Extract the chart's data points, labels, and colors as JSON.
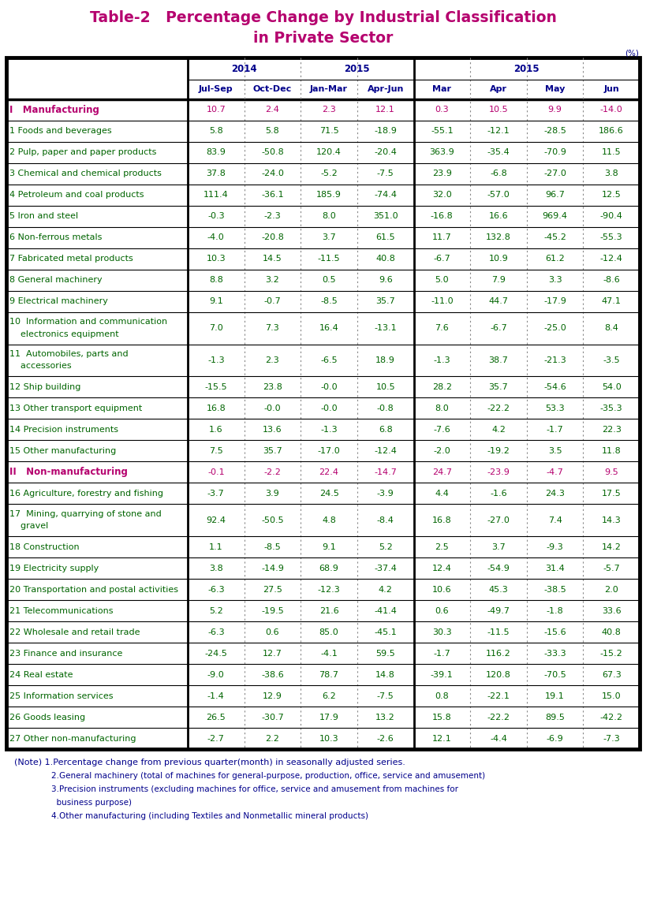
{
  "title_line1": "Table-2   Percentage Change by Industrial Classification",
  "title_line2": "in Private Sector",
  "title_color": "#b5006e",
  "percent_label": "(%)",
  "header_color": "#00008b",
  "note_color": "#00008b",
  "col_subheaders": [
    "Jul-Sep",
    "Oct-Dec",
    "Jan-Mar",
    "Apr-Jun",
    "Mar",
    "Apr",
    "May",
    "Jun"
  ],
  "rows": [
    {
      "label": "I   Manufacturing",
      "is_section": true,
      "label_color": "#b5006e",
      "data_color": "#b5006e",
      "multiline": false,
      "values": [
        "10.7",
        "2.4",
        "2.3",
        "12.1",
        "0.3",
        "10.5",
        "9.9",
        "-14.0"
      ]
    },
    {
      "label": "1 Foods and beverages",
      "is_section": false,
      "label_color": "#006400",
      "data_color": "#006400",
      "multiline": false,
      "values": [
        "5.8",
        "5.8",
        "71.5",
        "-18.9",
        "-55.1",
        "-12.1",
        "-28.5",
        "186.6"
      ]
    },
    {
      "label": "2 Pulp, paper and paper products",
      "is_section": false,
      "label_color": "#006400",
      "data_color": "#006400",
      "multiline": false,
      "values": [
        "83.9",
        "-50.8",
        "120.4",
        "-20.4",
        "363.9",
        "-35.4",
        "-70.9",
        "11.5"
      ]
    },
    {
      "label": "3 Chemical and chemical products",
      "is_section": false,
      "label_color": "#006400",
      "data_color": "#006400",
      "multiline": false,
      "values": [
        "37.8",
        "-24.0",
        "-5.2",
        "-7.5",
        "23.9",
        "-6.8",
        "-27.0",
        "3.8"
      ]
    },
    {
      "label": "4 Petroleum and coal products",
      "is_section": false,
      "label_color": "#006400",
      "data_color": "#006400",
      "multiline": false,
      "values": [
        "111.4",
        "-36.1",
        "185.9",
        "-74.4",
        "32.0",
        "-57.0",
        "96.7",
        "12.5"
      ]
    },
    {
      "label": "5 Iron and steel",
      "is_section": false,
      "label_color": "#006400",
      "data_color": "#006400",
      "multiline": false,
      "values": [
        "-0.3",
        "-2.3",
        "8.0",
        "351.0",
        "-16.8",
        "16.6",
        "969.4",
        "-90.4"
      ]
    },
    {
      "label": "6 Non-ferrous metals",
      "is_section": false,
      "label_color": "#006400",
      "data_color": "#006400",
      "multiline": false,
      "values": [
        "-4.0",
        "-20.8",
        "3.7",
        "61.5",
        "11.7",
        "132.8",
        "-45.2",
        "-55.3"
      ]
    },
    {
      "label": "7 Fabricated metal products",
      "is_section": false,
      "label_color": "#006400",
      "data_color": "#006400",
      "multiline": false,
      "values": [
        "10.3",
        "14.5",
        "-11.5",
        "40.8",
        "-6.7",
        "10.9",
        "61.2",
        "-12.4"
      ]
    },
    {
      "label": "8 General machinery",
      "is_section": false,
      "label_color": "#006400",
      "data_color": "#006400",
      "multiline": false,
      "values": [
        "8.8",
        "3.2",
        "0.5",
        "9.6",
        "5.0",
        "7.9",
        "3.3",
        "-8.6"
      ]
    },
    {
      "label": "9 Electrical machinery",
      "is_section": false,
      "label_color": "#006400",
      "data_color": "#006400",
      "multiline": false,
      "values": [
        "9.1",
        "-0.7",
        "-8.5",
        "35.7",
        "-11.0",
        "44.7",
        "-17.9",
        "47.1"
      ]
    },
    {
      "label_line1": "10  Information and communication",
      "label_line2": "    electronics equipment",
      "is_section": false,
      "label_color": "#006400",
      "data_color": "#006400",
      "multiline": true,
      "values": [
        "7.0",
        "7.3",
        "16.4",
        "-13.1",
        "7.6",
        "-6.7",
        "-25.0",
        "8.4"
      ]
    },
    {
      "label_line1": "11  Automobiles, parts and",
      "label_line2": "    accessories",
      "is_section": false,
      "label_color": "#006400",
      "data_color": "#006400",
      "multiline": true,
      "values": [
        "-1.3",
        "2.3",
        "-6.5",
        "18.9",
        "-1.3",
        "38.7",
        "-21.3",
        "-3.5"
      ]
    },
    {
      "label": "12 Ship building",
      "is_section": false,
      "label_color": "#006400",
      "data_color": "#006400",
      "multiline": false,
      "values": [
        "-15.5",
        "23.8",
        "-0.0",
        "10.5",
        "28.2",
        "35.7",
        "-54.6",
        "54.0"
      ]
    },
    {
      "label": "13 Other transport equipment",
      "is_section": false,
      "label_color": "#006400",
      "data_color": "#006400",
      "multiline": false,
      "values": [
        "16.8",
        "-0.0",
        "-0.0",
        "-0.8",
        "8.0",
        "-22.2",
        "53.3",
        "-35.3"
      ]
    },
    {
      "label": "14 Precision instruments",
      "is_section": false,
      "label_color": "#006400",
      "data_color": "#006400",
      "multiline": false,
      "values": [
        "1.6",
        "13.6",
        "-1.3",
        "6.8",
        "-7.6",
        "4.2",
        "-1.7",
        "22.3"
      ]
    },
    {
      "label": "15 Other manufacturing",
      "is_section": false,
      "label_color": "#006400",
      "data_color": "#006400",
      "multiline": false,
      "values": [
        "7.5",
        "35.7",
        "-17.0",
        "-12.4",
        "-2.0",
        "-19.2",
        "3.5",
        "11.8"
      ]
    },
    {
      "label": "II   Non-manufacturing",
      "is_section": true,
      "label_color": "#b5006e",
      "data_color": "#b5006e",
      "multiline": false,
      "values": [
        "-0.1",
        "-2.2",
        "22.4",
        "-14.7",
        "24.7",
        "-23.9",
        "-4.7",
        "9.5"
      ]
    },
    {
      "label": "16 Agriculture, forestry and fishing",
      "is_section": false,
      "label_color": "#006400",
      "data_color": "#006400",
      "multiline": false,
      "values": [
        "-3.7",
        "3.9",
        "24.5",
        "-3.9",
        "4.4",
        "-1.6",
        "24.3",
        "17.5"
      ]
    },
    {
      "label_line1": "17  Mining, quarrying of stone and",
      "label_line2": "    gravel",
      "is_section": false,
      "label_color": "#006400",
      "data_color": "#006400",
      "multiline": true,
      "values": [
        "92.4",
        "-50.5",
        "4.8",
        "-8.4",
        "16.8",
        "-27.0",
        "7.4",
        "14.3"
      ]
    },
    {
      "label": "18 Construction",
      "is_section": false,
      "label_color": "#006400",
      "data_color": "#006400",
      "multiline": false,
      "values": [
        "1.1",
        "-8.5",
        "9.1",
        "5.2",
        "2.5",
        "3.7",
        "-9.3",
        "14.2"
      ]
    },
    {
      "label": "19 Electricity supply",
      "is_section": false,
      "label_color": "#006400",
      "data_color": "#006400",
      "multiline": false,
      "values": [
        "3.8",
        "-14.9",
        "68.9",
        "-37.4",
        "12.4",
        "-54.9",
        "31.4",
        "-5.7"
      ]
    },
    {
      "label": "20 Transportation and postal activities",
      "is_section": false,
      "label_color": "#006400",
      "data_color": "#006400",
      "multiline": false,
      "values": [
        "-6.3",
        "27.5",
        "-12.3",
        "4.2",
        "10.6",
        "45.3",
        "-38.5",
        "2.0"
      ]
    },
    {
      "label": "21 Telecommunications",
      "is_section": false,
      "label_color": "#006400",
      "data_color": "#006400",
      "multiline": false,
      "values": [
        "5.2",
        "-19.5",
        "21.6",
        "-41.4",
        "0.6",
        "-49.7",
        "-1.8",
        "33.6"
      ]
    },
    {
      "label": "22 Wholesale and retail trade",
      "is_section": false,
      "label_color": "#006400",
      "data_color": "#006400",
      "multiline": false,
      "values": [
        "-6.3",
        "0.6",
        "85.0",
        "-45.1",
        "30.3",
        "-11.5",
        "-15.6",
        "40.8"
      ]
    },
    {
      "label": "23 Finance and insurance",
      "is_section": false,
      "label_color": "#006400",
      "data_color": "#006400",
      "multiline": false,
      "values": [
        "-24.5",
        "12.7",
        "-4.1",
        "59.5",
        "-1.7",
        "116.2",
        "-33.3",
        "-15.2"
      ]
    },
    {
      "label": "24 Real estate",
      "is_section": false,
      "label_color": "#006400",
      "data_color": "#006400",
      "multiline": false,
      "values": [
        "-9.0",
        "-38.6",
        "78.7",
        "14.8",
        "-39.1",
        "120.8",
        "-70.5",
        "67.3"
      ]
    },
    {
      "label": "25 Information services",
      "is_section": false,
      "label_color": "#006400",
      "data_color": "#006400",
      "multiline": false,
      "values": [
        "-1.4",
        "12.9",
        "6.2",
        "-7.5",
        "0.8",
        "-22.1",
        "19.1",
        "15.0"
      ]
    },
    {
      "label": "26 Goods leasing",
      "is_section": false,
      "label_color": "#006400",
      "data_color": "#006400",
      "multiline": false,
      "values": [
        "26.5",
        "-30.7",
        "17.9",
        "13.2",
        "15.8",
        "-22.2",
        "89.5",
        "-42.2"
      ]
    },
    {
      "label": "27 Other non-manufacturing",
      "is_section": false,
      "label_color": "#006400",
      "data_color": "#006400",
      "multiline": false,
      "values": [
        "-2.7",
        "2.2",
        "10.3",
        "-2.6",
        "12.1",
        "-4.4",
        "-6.9",
        "-7.3"
      ]
    }
  ],
  "notes": [
    [
      "(Note) 1.Percentage change from previous quarter(month) in seasonally adjusted series.",
      0.012,
      8.0
    ],
    [
      "2.General machinery (total of machines for general-purpose, production, office, service and amusement)",
      0.07,
      7.5
    ],
    [
      "3.Precision instruments (excluding machines for office, service and amusement from machines for",
      0.07,
      7.5
    ],
    [
      "  business purpose)",
      0.07,
      7.5
    ],
    [
      "4.Other manufacturing (including Textiles and Nonmetallic mineral products)",
      0.07,
      7.5
    ]
  ],
  "bg_color": "#ffffff"
}
